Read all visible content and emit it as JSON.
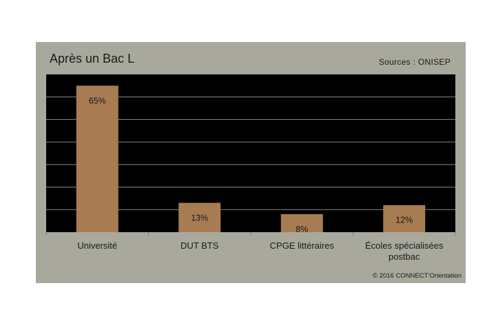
{
  "header": {
    "title": "Après un Bac L",
    "source": "Sources : ONISEP"
  },
  "footer": {
    "copyright": "© 2016 CONNECT’Orientation"
  },
  "colors": {
    "card_background": "#a9a89d",
    "plot_background": "#000000",
    "bar": "#a87c53",
    "gridline": "#8a8a8a"
  },
  "chart_data": {
    "type": "bar",
    "categories": [
      "Université",
      "DUT BTS",
      "CPGE littéraires",
      "Écoles spécialisées postbac"
    ],
    "category_lines": [
      [
        "Université"
      ],
      [
        "DUT BTS"
      ],
      [
        "CPGE littéraires"
      ],
      [
        "Écoles spécialisées",
        "postbac"
      ]
    ],
    "values": [
      65,
      13,
      8,
      12
    ],
    "data_labels": [
      "65%",
      "13%",
      "8%",
      "12%"
    ],
    "title": "Après un Bac L",
    "xlabel": "",
    "ylabel": "",
    "ylim": [
      0,
      70
    ],
    "ygrid_step": 10,
    "grid": true,
    "legend": "none"
  }
}
